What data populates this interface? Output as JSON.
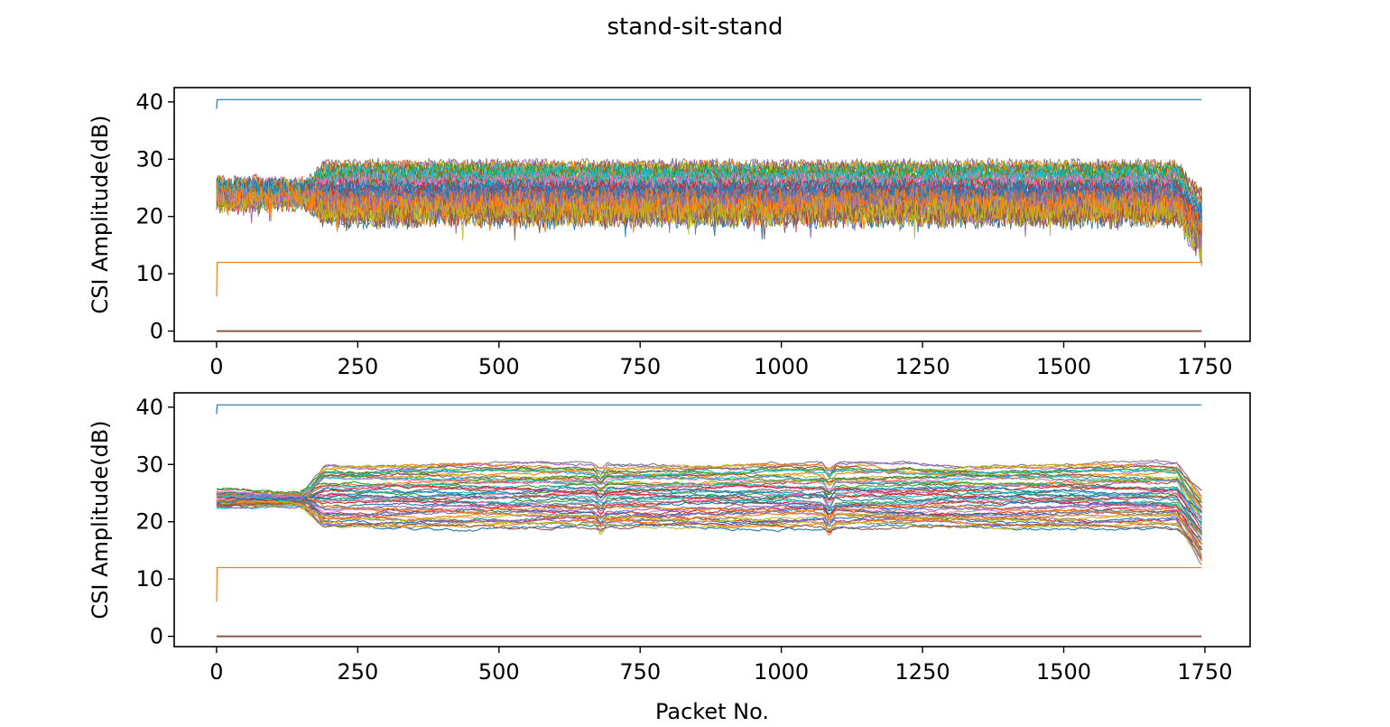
{
  "figure": {
    "suptitle": "stand-sit-stand",
    "xlabel": "Packet No.",
    "colors": [
      "#1f77b4",
      "#ff7f0e",
      "#2ca02c",
      "#d62728",
      "#9467bd",
      "#8c564b",
      "#e377c2",
      "#7f7f7f",
      "#bcbd22",
      "#17becf"
    ]
  },
  "chart_data": [
    {
      "type": "line",
      "title": "",
      "xlabel": "",
      "ylabel": "CSI Amplitude(dB)",
      "xlim": [
        -75,
        1830
      ],
      "ylim": [
        -1.8,
        42.5
      ],
      "xticks": [
        0,
        250,
        500,
        750,
        1000,
        1250,
        1500,
        1750
      ],
      "yticks": [
        0,
        10,
        20,
        30,
        40
      ],
      "xtick_labels": [
        "0",
        "250",
        "500",
        "750",
        "1000",
        "1250",
        "1500",
        "1750"
      ],
      "ytick_labels": [
        "0",
        "10",
        "20",
        "30",
        "40"
      ],
      "n_points": 1745,
      "subcarrier_series": 52,
      "subcarrier_level_range_db": [
        20,
        29
      ],
      "noise": "raw",
      "series": [
        {
          "color": "#1f77b4",
          "start": 38.8,
          "level": 40.4,
          "end": 40.4
        },
        {
          "color": "#ff7f0e",
          "start": 6.0,
          "level": 12.0,
          "end": 12.0
        },
        {
          "color": "#8c564b",
          "start": 0.0,
          "level": 0.0,
          "end": 0.0
        }
      ]
    },
    {
      "type": "line",
      "title": "",
      "xlabel": "Packet No.",
      "ylabel": "CSI Amplitude(dB)",
      "xlim": [
        -75,
        1830
      ],
      "ylim": [
        -1.8,
        42.5
      ],
      "xticks": [
        0,
        250,
        500,
        750,
        1000,
        1250,
        1500,
        1750
      ],
      "yticks": [
        0,
        10,
        20,
        30,
        40
      ],
      "xtick_labels": [
        "0",
        "250",
        "500",
        "750",
        "1000",
        "1250",
        "1500",
        "1750"
      ],
      "ytick_labels": [
        "0",
        "10",
        "20",
        "30",
        "40"
      ],
      "n_points": 1745,
      "subcarrier_series": 52,
      "subcarrier_level_range_db": [
        19,
        30
      ],
      "noise": "smoothed",
      "series": [
        {
          "color": "#1f77b4",
          "start": 38.8,
          "level": 40.4,
          "end": 40.4
        },
        {
          "color": "#ff7f0e",
          "start": 6.0,
          "level": 12.0,
          "end": 12.0
        },
        {
          "color": "#8c564b",
          "start": 0.0,
          "level": 0.0,
          "end": 0.0
        }
      ]
    }
  ]
}
